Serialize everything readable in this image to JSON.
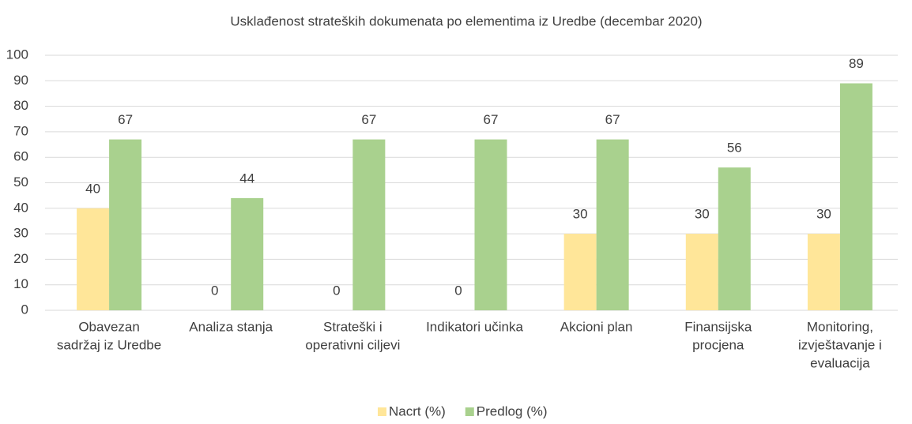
{
  "chart_data": {
    "type": "bar",
    "title": "Usklađenost strateških dokumenata po elementima iz Uredbe (decembar 2020)",
    "categories": [
      [
        "Obavezan",
        "sadržaj iz Uredbe"
      ],
      [
        "Analiza stanja"
      ],
      [
        "Strateški i",
        "operativni ciljevi"
      ],
      [
        "Indikatori učinka"
      ],
      [
        "Akcioni plan"
      ],
      [
        "Finansijska",
        "procjena"
      ],
      [
        "Monitoring,",
        "izvještavanje i",
        "evaluacija"
      ]
    ],
    "series": [
      {
        "name": "Nacrt (%)",
        "color": "#ffe699",
        "values": [
          40,
          0,
          0,
          0,
          30,
          30,
          30
        ]
      },
      {
        "name": "Predlog (%)",
        "color": "#a9d18e",
        "values": [
          67,
          44,
          67,
          67,
          67,
          56,
          89
        ]
      }
    ],
    "ylim": [
      0,
      100
    ],
    "yticks": [
      0,
      10,
      20,
      30,
      40,
      50,
      60,
      70,
      80,
      90,
      100
    ],
    "grid": true,
    "legend": "bottom"
  }
}
